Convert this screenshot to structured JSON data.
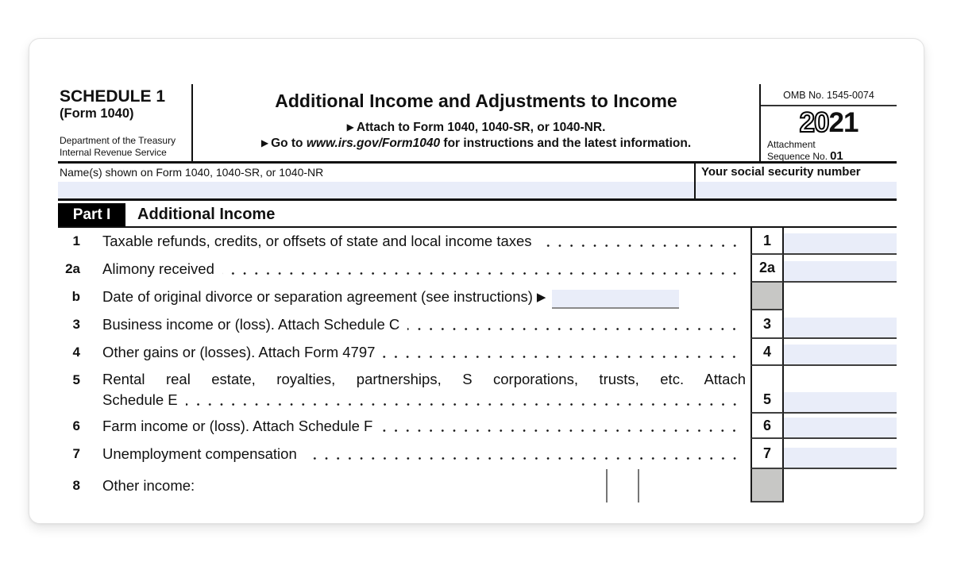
{
  "header": {
    "schedule": "SCHEDULE 1",
    "form": "(Form 1040)",
    "dept1": "Department of the Treasury",
    "dept2": "Internal Revenue Service",
    "title": "Additional Income and Adjustments to Income",
    "arrow": "▶",
    "attach": "Attach to Form 1040, 1040-SR, or 1040-NR.",
    "goto_prefix": "Go to ",
    "goto_url": "www.irs.gov/Form1040",
    "goto_suffix": " for instructions and the latest information.",
    "omb": "OMB No. 1545-0074",
    "year_outline": "20",
    "year_bold": "21",
    "attachment": "Attachment",
    "sequence": "Sequence No.",
    "sequence_no": "01"
  },
  "identity": {
    "name_label": "Name(s) shown on Form 1040, 1040-SR, or 1040-NR",
    "name_value": "",
    "ssn_label": "Your social security number",
    "ssn_value": ""
  },
  "part1": {
    "badge": "Part I",
    "title": "Additional Income"
  },
  "lines": [
    {
      "num": "1",
      "text": "Taxable refunds, credits, or offsets of state and local income taxes",
      "box": "1",
      "value": ""
    },
    {
      "num": "2a",
      "text": "Alimony received",
      "box": "2a",
      "value": ""
    },
    {
      "num": "b",
      "text": "Date of original divorce or separation agreement (see instructions)",
      "arrow": "▶",
      "value": ""
    },
    {
      "num": "3",
      "text": "Business income or (loss). Attach Schedule C",
      "box": "3",
      "value": ""
    },
    {
      "num": "4",
      "text": "Other gains or (losses). Attach Form 4797",
      "box": "4",
      "value": ""
    },
    {
      "num": "5",
      "text_line1": "Rental real estate, royalties, partnerships, S corporations, trusts, etc. Attach",
      "text_line2": "Schedule E",
      "box": "5",
      "value": ""
    },
    {
      "num": "6",
      "text": "Farm income or (loss). Attach Schedule F",
      "box": "6",
      "value": ""
    },
    {
      "num": "7",
      "text": "Unemployment compensation",
      "box": "7",
      "value": ""
    },
    {
      "num": "8",
      "text": "Other income:"
    }
  ],
  "colors": {
    "field_bg": "#e9edf9",
    "shaded_cell": "#c7c7c5",
    "rule": "#111111"
  }
}
